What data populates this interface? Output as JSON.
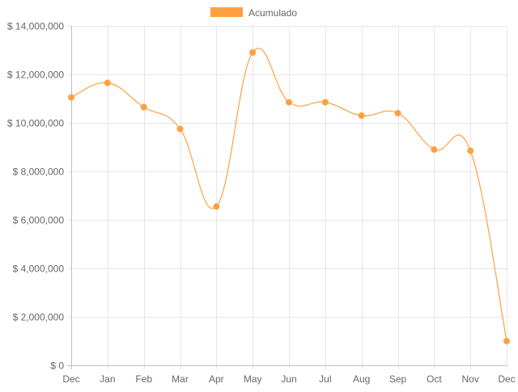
{
  "chart_data": {
    "type": "line",
    "title": "",
    "xlabel": "",
    "ylabel": "",
    "categories": [
      "Dec",
      "Jan",
      "Feb",
      "Mar",
      "Apr",
      "May",
      "Jun",
      "Jul",
      "Aug",
      "Sep",
      "Oct",
      "Nov",
      "Dec"
    ],
    "series": [
      {
        "name": "Acumulado",
        "color": "#ffa040",
        "values": [
          11050000,
          11650000,
          10650000,
          9750000,
          6550000,
          12900000,
          10850000,
          10850000,
          10300000,
          10400000,
          8900000,
          8850000,
          1000000
        ]
      }
    ],
    "ylim": [
      0,
      14000000
    ],
    "y_ticks": [
      0,
      2000000,
      4000000,
      6000000,
      8000000,
      10000000,
      12000000,
      14000000
    ],
    "y_tick_labels": [
      "$ 0",
      "$ 2,000,000",
      "$ 4,000,000",
      "$ 6,000,000",
      "$ 8,000,000",
      "$ 10,000,000",
      "$ 12,000,000",
      "$ 14,000,000"
    ],
    "grid": true,
    "legend": "top-center",
    "line_smoothing": "curved"
  }
}
